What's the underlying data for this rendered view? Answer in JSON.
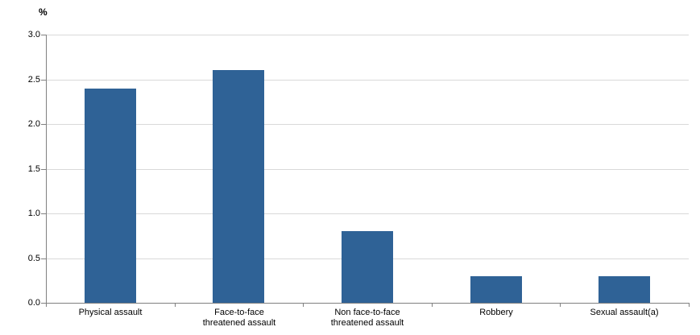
{
  "chart_data": {
    "type": "bar",
    "title": "",
    "xlabel": "",
    "ylabel": "%",
    "categories": [
      "Physical assault",
      "Face-to-face threatened assault",
      "Non face-to-face threatened assault",
      "Robbery",
      "Sexual assault(a)"
    ],
    "category_label_lines": [
      [
        "Physical assault"
      ],
      [
        "Face-to-face",
        "threatened assault"
      ],
      [
        "Non face-to-face",
        "threatened assault"
      ],
      [
        "Robbery"
      ],
      [
        "Sexual assault(a)"
      ]
    ],
    "values": [
      2.4,
      2.6,
      0.8,
      0.3,
      0.3
    ],
    "ylim": [
      0.0,
      3.0
    ],
    "yticks": [
      0.0,
      0.5,
      1.0,
      1.5,
      2.0,
      2.5,
      3.0
    ],
    "ytick_labels": [
      "0.0",
      "0.5",
      "1.0",
      "1.5",
      "2.0",
      "2.5",
      "3.0"
    ],
    "grid": true,
    "legend": "none",
    "colors": {
      "bar": "#2F6296",
      "gridline": "#D9D9D9",
      "axis": "#808080",
      "text": "#000000",
      "background": "#FFFFFF"
    }
  }
}
